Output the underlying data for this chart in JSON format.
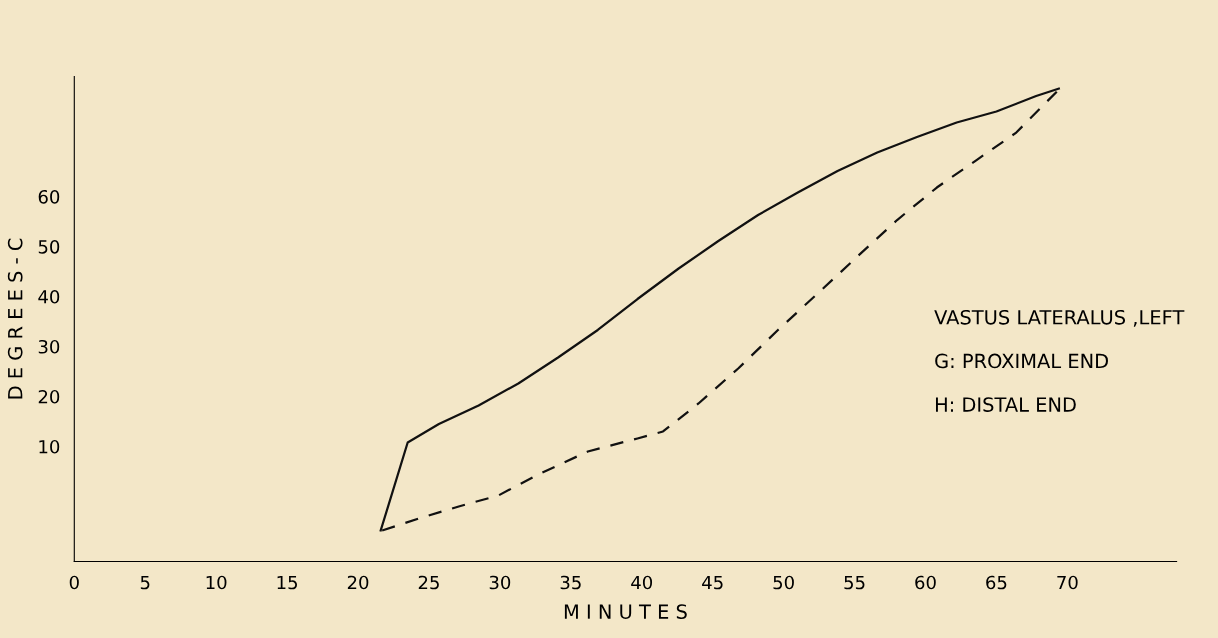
{
  "chart_data": {
    "type": "line",
    "xlabel": "M I N U T E S",
    "ylabel": "D E G R E E S - C",
    "xlim": [
      0,
      77.7
    ],
    "ylim": [
      -13,
      84
    ],
    "xticks": [
      0,
      5,
      10,
      15,
      20,
      25,
      30,
      35,
      40,
      45,
      50,
      55,
      60,
      65,
      70
    ],
    "yticks": [
      10,
      20,
      30,
      40,
      50,
      60
    ],
    "grid": false,
    "legend": false,
    "series": [
      {
        "color": "#111111",
        "line_style": "solid",
        "x": [
          21.6,
          23.5,
          25.7,
          28.5,
          31.3,
          34.1,
          36.9,
          39.7,
          42.6,
          45.4,
          48.2,
          51.0,
          53.8,
          56.6,
          59.4,
          62.2,
          65.0,
          67.8,
          69.4
        ],
        "values": [
          -6.8,
          10.8,
          14.5,
          18.2,
          22.6,
          27.8,
          33.3,
          39.5,
          45.6,
          51.1,
          56.3,
          60.8,
          65.1,
          68.8,
          71.9,
          74.8,
          77.0,
          80.1,
          81.6
        ]
      },
      {
        "color": "#111111",
        "line_style": "dashed",
        "x": [
          21.7,
          24.3,
          27.1,
          29.9,
          32.7,
          36.2,
          39.7,
          41.5,
          44.0,
          46.8,
          49.6,
          52.4,
          55.2,
          58.0,
          60.8,
          63.6,
          66.4,
          69.4
        ],
        "values": [
          -6.8,
          -4.4,
          -2.0,
          0.2,
          4.4,
          9.0,
          11.6,
          13.0,
          18.6,
          25.6,
          33.3,
          40.6,
          48.0,
          55.3,
          61.8,
          67.3,
          72.8,
          81.4
        ]
      }
    ],
    "annotations": [
      "VASTUS LATERALUS ,LEFT",
      "G: PROXIMAL END",
      "H: DISTAL END"
    ]
  }
}
